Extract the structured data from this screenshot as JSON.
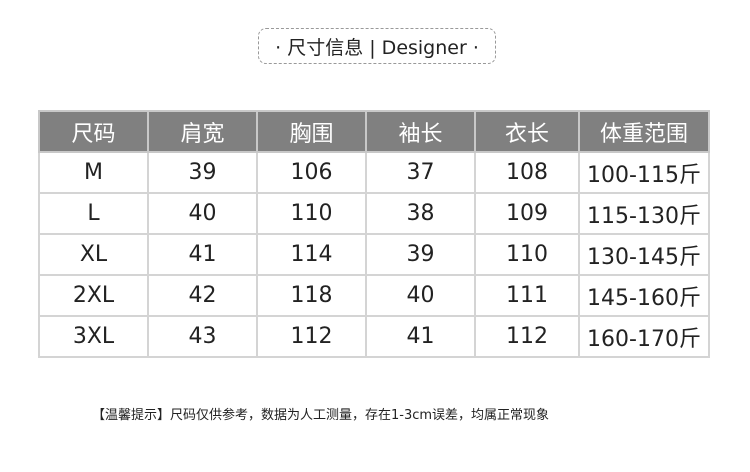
{
  "title": "· 尺寸信息 | Designer ·",
  "table": {
    "headers": [
      "尺码",
      "肩宽",
      "胸围",
      "袖长",
      "衣长",
      "体重范围"
    ],
    "rows": [
      [
        "M",
        "39",
        "106",
        "37",
        "108",
        "100-115斤"
      ],
      [
        "L",
        "40",
        "110",
        "38",
        "109",
        "115-130斤"
      ],
      [
        "XL",
        "41",
        "114",
        "39",
        "110",
        "130-145斤"
      ],
      [
        "2XL",
        "42",
        "118",
        "40",
        "111",
        "145-160斤"
      ],
      [
        "3XL",
        "43",
        "112",
        "41",
        "112",
        "160-170斤"
      ]
    ]
  },
  "note": "【温馨提示】尺码仅供参考，数据为人工测量，存在1-3cm误差，均属正常现象",
  "colors": {
    "header_bg": "#808080",
    "border": "#d4d4d4"
  }
}
